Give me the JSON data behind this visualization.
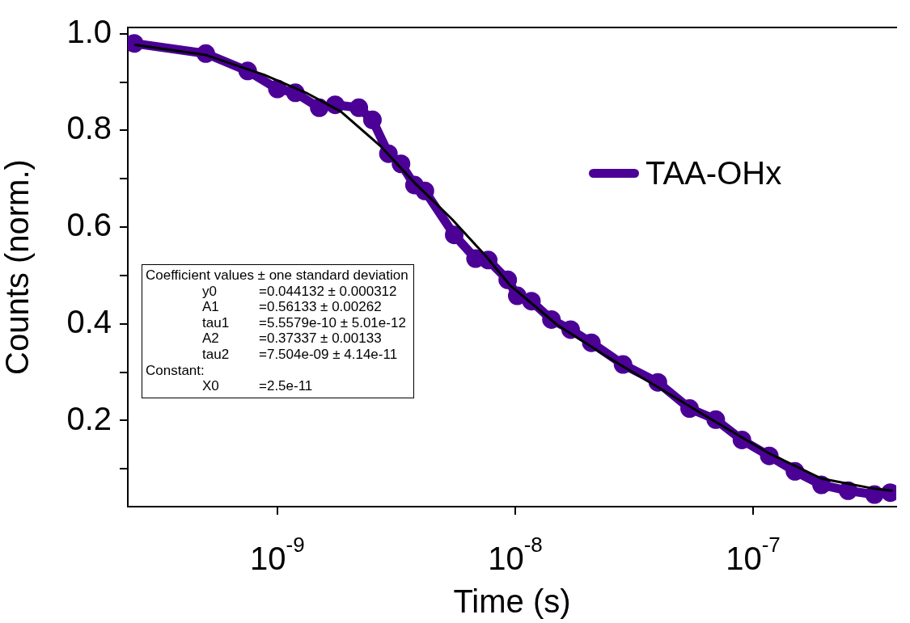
{
  "chart_data": {
    "type": "line",
    "xlabel": "Time (s)",
    "ylabel": "Counts (norm.)",
    "log": "x",
    "grid": false,
    "legend": "top right",
    "xlim": [
      2.35e-10,
      4e-07
    ],
    "xticks": [
      {
        "value": 1e-09,
        "label": "10$^{-9}$"
      },
      {
        "value": 1e-08,
        "label": "10$^{-8}$"
      },
      {
        "value": 1e-07,
        "label": "10$^{-7}$"
      }
    ],
    "ylim": [
      0.022,
      1.013
    ],
    "yticks": [
      {
        "value": 0.1,
        "label": null
      },
      0.2,
      {
        "value": 0.3,
        "label": null
      },
      0.4,
      {
        "value": 0.5,
        "label": null
      },
      0.6,
      {
        "value": 0.7,
        "label": null
      },
      0.8,
      {
        "value": 0.9,
        "label": null
      },
      {
        "value": 1.0,
        "label": "1.0"
      }
    ],
    "series": [
      {
        "name": "TAA-OHx",
        "color": "#4b0096",
        "marker": "circle",
        "x": [
          2.5e-10,
          5e-10,
          7.5e-10,
          1e-09,
          1.19e-09,
          1.5e-09,
          1.75e-09,
          2.2e-09,
          2.51e-09,
          2.93e-09,
          3.31e-09,
          3.77e-09,
          4.17e-09,
          5.54e-09,
          6.81e-09,
          7.7e-09,
          9.3e-09,
          1.02e-08,
          1.17e-08,
          1.42e-08,
          1.71e-08,
          2.09e-08,
          2.84e-08,
          3.98e-08,
          5.41e-08,
          6.97e-08,
          8.98e-08,
          1.17e-07,
          1.5e-07,
          1.94e-07,
          2.51e-07,
          3.24e-07,
          3.78e-07
        ],
        "values": [
          0.98,
          0.959,
          0.923,
          0.886,
          0.878,
          0.847,
          0.853,
          0.847,
          0.822,
          0.752,
          0.731,
          0.687,
          0.675,
          0.584,
          0.535,
          0.532,
          0.491,
          0.458,
          0.447,
          0.409,
          0.388,
          0.361,
          0.316,
          0.279,
          0.225,
          0.202,
          0.16,
          0.127,
          0.095,
          0.067,
          0.055,
          0.047,
          0.051
        ]
      },
      {
        "color": "#000000",
        "marker": "none",
        "x": [
          2.53e-10,
          5e-10,
          8.8e-10,
          1.32e-09,
          1.85e-09,
          2.71e-09,
          3.77e-09,
          5.41e-09,
          7.53e-09,
          9.5e-09,
          1.5e-08,
          2.51e-08,
          4.17e-08,
          6.97e-08,
          1.17e-07,
          1.94e-07,
          3.24e-07,
          3.83e-07
        ],
        "values": [
          0.977,
          0.956,
          0.915,
          0.878,
          0.839,
          0.768,
          0.692,
          0.617,
          0.54,
          0.48,
          0.398,
          0.328,
          0.263,
          0.197,
          0.132,
          0.08,
          0.059,
          0.055
        ]
      }
    ],
    "annotations": [
      "Coefficient values ± one standard deviation",
      "y0 =0.044132 ± 0.000312",
      "A1 =0.56133 ± 0.00262",
      "tau1 =5.5579e-10 ± 5.01e-12",
      "A2 =0.37337 ± 0.00133",
      "tau2 =7.504e-09 ± 4.14e-11",
      "Constant:",
      "X0 =2.5e-11"
    ]
  }
}
